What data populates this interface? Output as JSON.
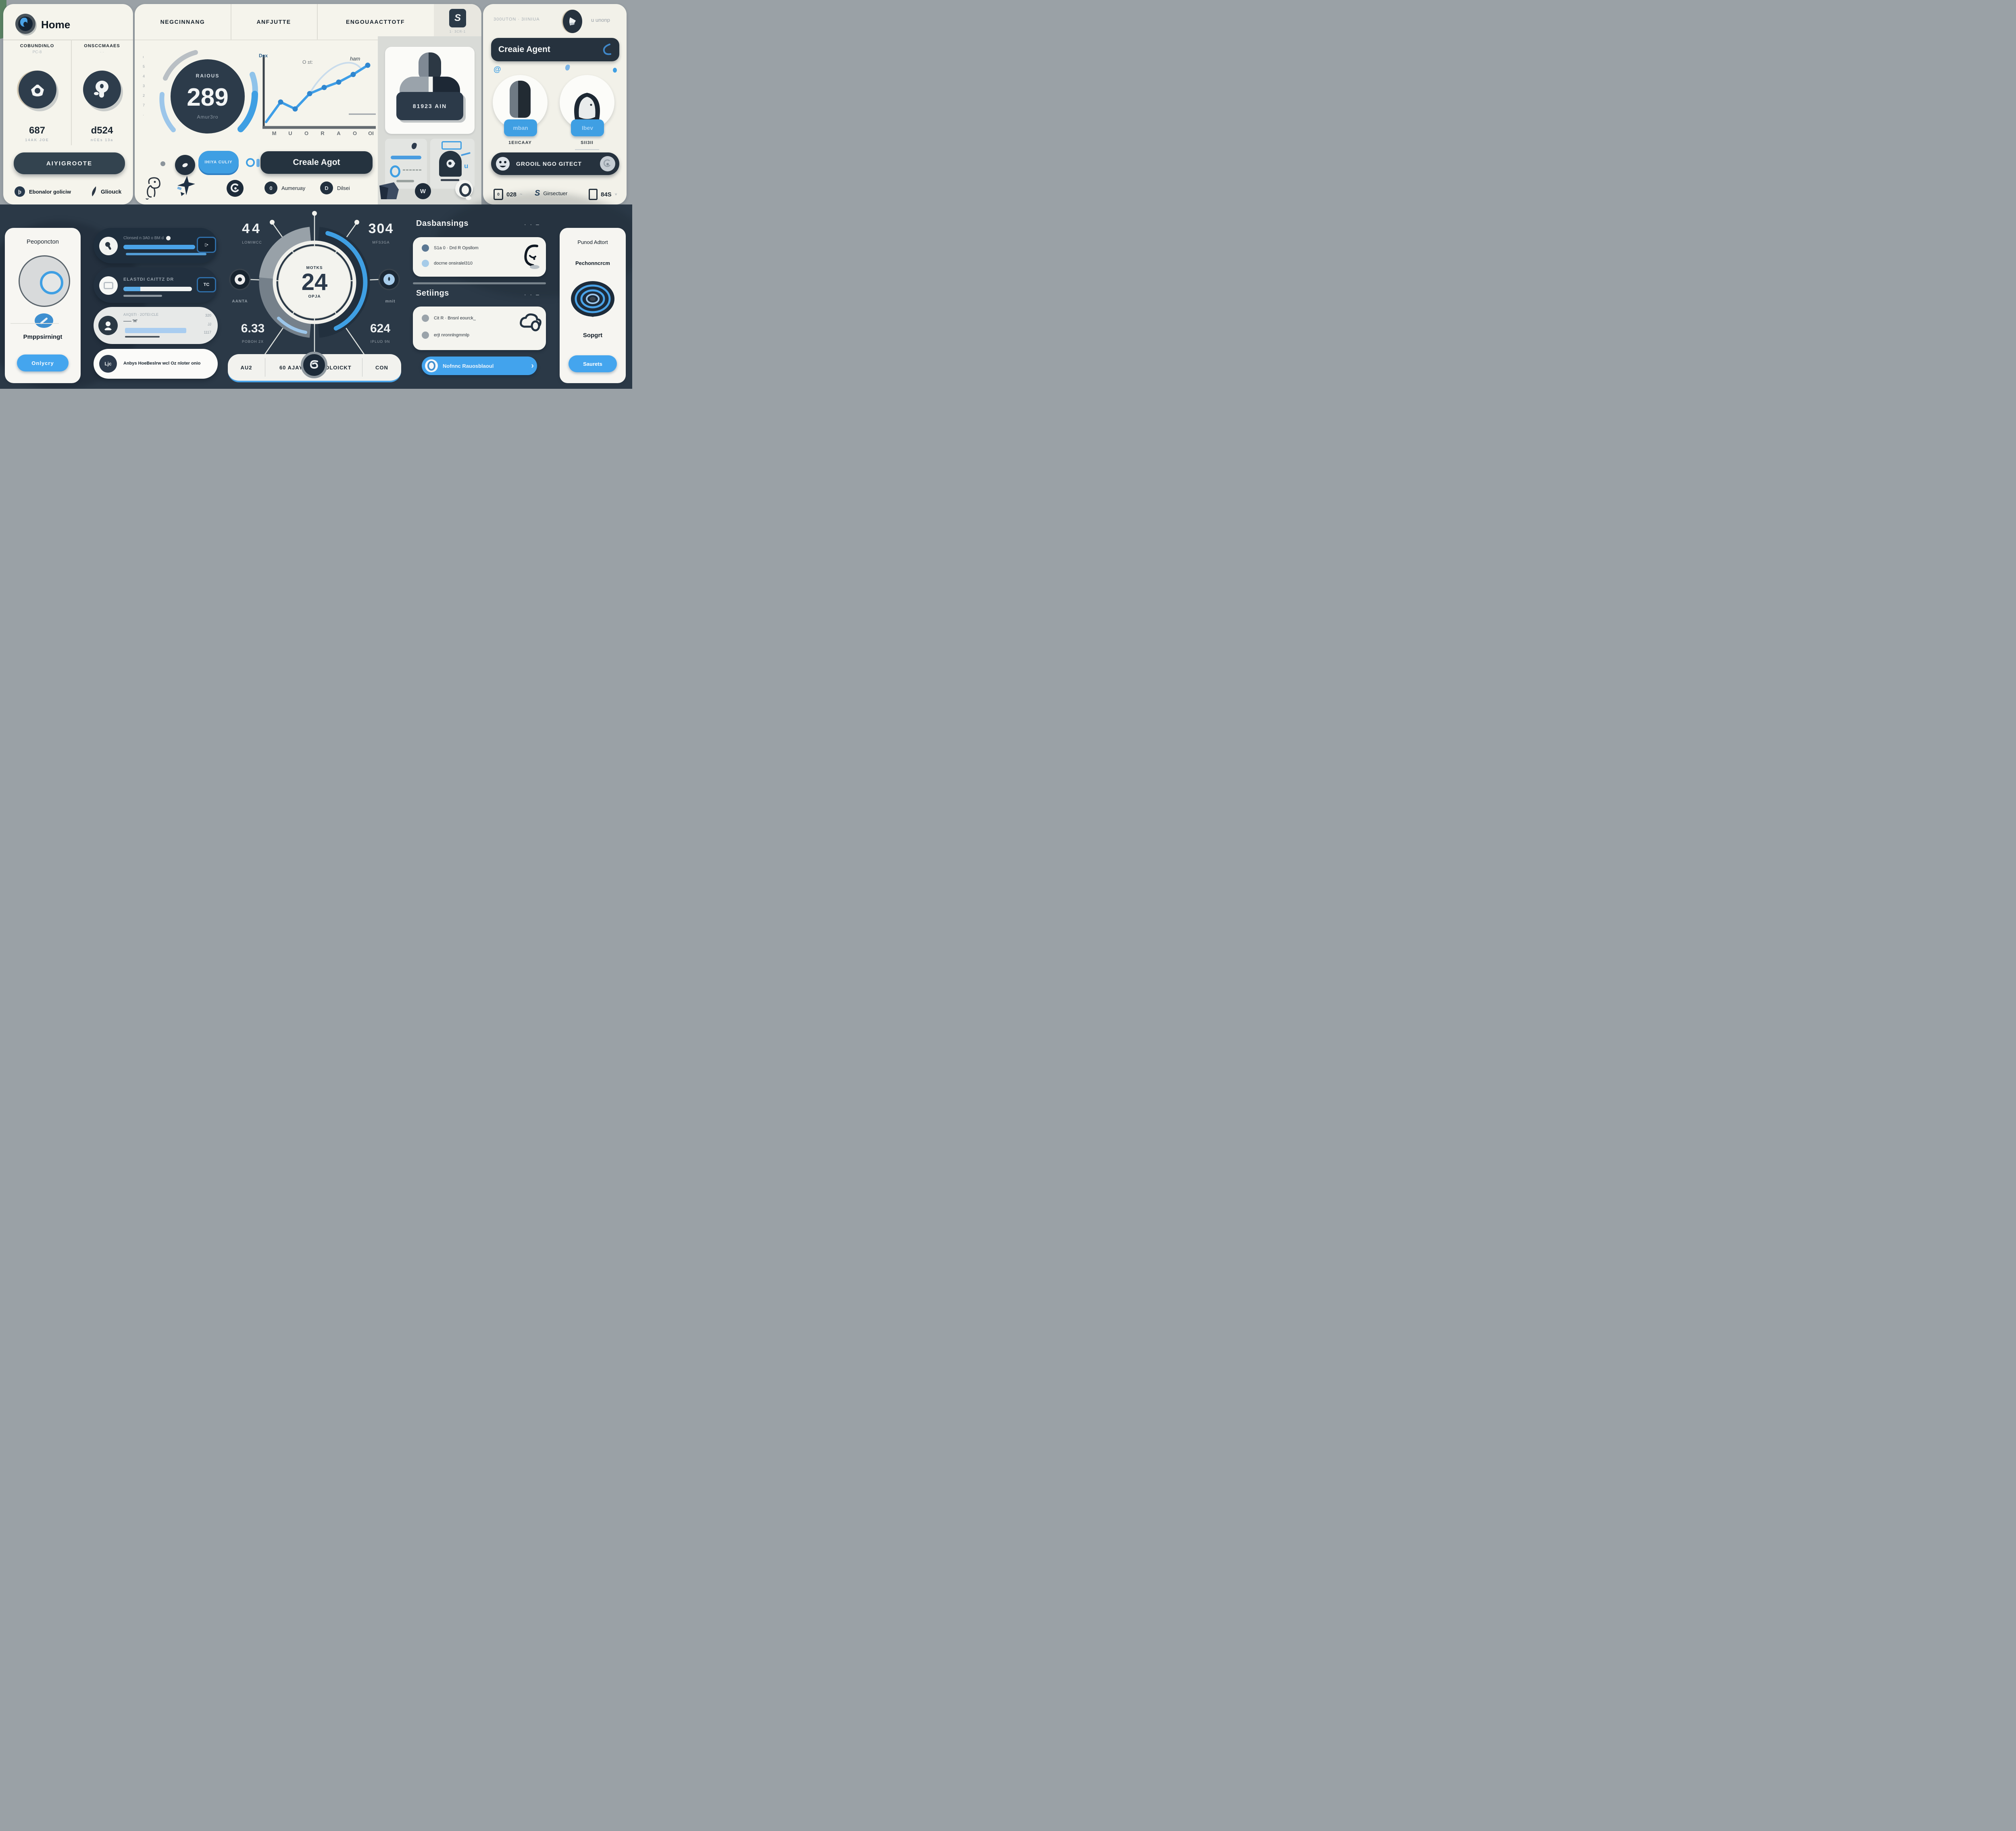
{
  "colors": {
    "accent": "#3f9fe3",
    "dark_navy": "#2b3a48",
    "cream_panel": "#f5f4ec",
    "bottom_background": "#2b3947",
    "light_blue": "#a9cdf0"
  },
  "header": {
    "home_title": "Home",
    "tabs": [
      {
        "label": "NEGCINNANG"
      },
      {
        "label": "ANFJUTTE"
      },
      {
        "label": "ENGOUAACTTOTF"
      }
    ],
    "side_tab_caption": "1· 3CR-1"
  },
  "stats_panel": {
    "columns": [
      {
        "title": "COBUNDINLO",
        "subtitle": "PC-8",
        "value": "687",
        "caption": "14AK JOE"
      },
      {
        "title": "ONSCCMAAES",
        "subtitle": "· ·",
        "value": "d524",
        "caption": "nCEs 13a"
      }
    ],
    "action_label": "AIYIGROOTE",
    "footer": [
      {
        "label": "Ebonalor goliciw"
      },
      {
        "label": "Gliouck"
      }
    ]
  },
  "overview_panel": {
    "gauge": {
      "top_label": "RAIOUS",
      "value": "289",
      "bottom_label": "Amur3ro",
      "ticks": [
        "ı",
        "5",
        "4",
        "3",
        "2",
        "7",
        "·"
      ]
    },
    "chart": {
      "type": "line",
      "title": "O ±t:",
      "ylabel": "Dex",
      "annotation": "ham",
      "xticks": [
        "M",
        "U",
        "O",
        "R",
        "A",
        "O",
        "OI"
      ],
      "values": [
        0.4,
        3.0,
        2.1,
        4.1,
        4.9,
        5.6,
        6.6,
        7.8
      ],
      "ylim": [
        0,
        8
      ],
      "grid": false
    },
    "chip_label": "IHIYA CULIY",
    "primary_action": "Creale Agot",
    "icon_row": [
      {
        "label": "Aumeruay"
      },
      {
        "label": "Dilsei"
      }
    ]
  },
  "agent_card": {
    "plaque": "81923 AIN"
  },
  "create_panel": {
    "breadcrumb": "300UTON · 3IINIUA",
    "account": "u unonp",
    "create_label": "Creaie Agent",
    "avatars": [
      {
        "badge": "mban",
        "name": "1EIICAAY"
      },
      {
        "badge": "Ibev",
        "name": "SII3II"
      }
    ],
    "action_label": "GROOIL NGO GITECT",
    "footer": [
      {
        "label": "028"
      },
      {
        "label": "Girsectuer"
      },
      {
        "label": "84S"
      }
    ]
  },
  "profile_card": {
    "title": "Peoponcton",
    "subtitle": "Pmppsirningt",
    "button_label": "Onlycry"
  },
  "task_list": {
    "rows": [
      {
        "title": "Clonsed n 3A0 o BM d",
        "badge": "▯▪"
      },
      {
        "title": "ELASTDI CAITTZ DR",
        "badge": "TC"
      },
      {
        "title": "AXQSTI · 2OTEI:CLE",
        "line2": "—— 'H'",
        "metas": [
          "320",
          "JJ",
          "1117"
        ]
      },
      {
        "avatar": "Ljc",
        "text": "Anbys HoeBeslrw wcl Oz nloter onio"
      }
    ]
  },
  "hub_gauge": {
    "center_top": "MOTKS",
    "center_value": "24",
    "center_bottom": "OPJA",
    "stats": {
      "top_left": {
        "value": "44",
        "label": "LOMIMCC"
      },
      "top_right": {
        "value": "304",
        "label": "MFS3GA"
      },
      "left_knob_label": "AANTA",
      "right_knob_label": "mnit",
      "bottom_left": {
        "value": "6.33",
        "label": "POBOH 2X"
      },
      "bottom_right": {
        "value": "624",
        "label": "IPLUD 9N"
      }
    },
    "segments": [
      {
        "label": "AU2"
      },
      {
        "label": "60 AJAY"
      },
      {
        "label": "OLOICKT"
      },
      {
        "label": "CON"
      }
    ]
  },
  "dash_panel": {
    "title": "Dasbansings",
    "dots": "· · –",
    "rows": [
      {
        "text": "S1a 0 · Drd R Opsllom"
      },
      {
        "text": "docrne onsiralel310"
      }
    ]
  },
  "settings_panel": {
    "title": "Setiings",
    "dots": "· · –",
    "rows": [
      {
        "text": "Cit R · Bnsnl eourck_"
      },
      {
        "text": "erjt nronnlngmmlp"
      }
    ],
    "button_label": "Nofnnc Rauosblaoul"
  },
  "support_panel": {
    "line1": "Punod Adtort",
    "line2": "Pechonncrcm",
    "line3": "Sopgrt",
    "button_label": "Saurets"
  }
}
